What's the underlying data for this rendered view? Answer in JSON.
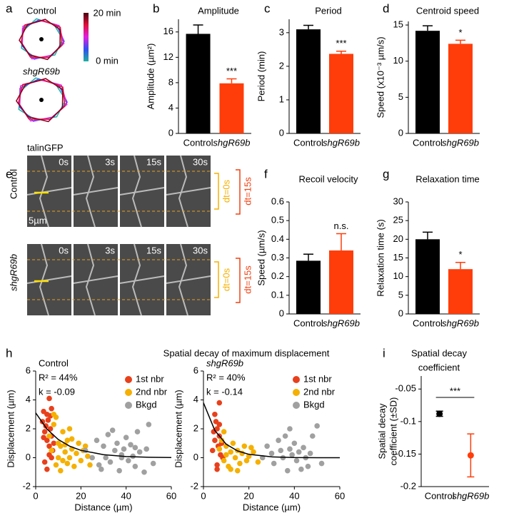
{
  "panel_labels": [
    "a",
    "b",
    "c",
    "d",
    "e",
    "f",
    "g",
    "h",
    "i"
  ],
  "panel_a": {
    "labels": [
      "Control",
      "shgR69b"
    ],
    "colorbar": [
      "20 min",
      "0 min"
    ]
  },
  "panel_e": {
    "channel": "talinGFP",
    "rows": [
      "Control",
      "shgR69b"
    ],
    "times": [
      "0s",
      "3s",
      "15s",
      "30s"
    ],
    "scale_bar": "5µm",
    "brackets": [
      "dt=0s",
      "dt=15s"
    ]
  },
  "panel_h": {
    "title": "Spatial decay of maximum displacement"
  },
  "chart_data": [
    {
      "type": "bar",
      "title": "Amplitude",
      "ylabel": "Amplitude (µm²)",
      "categories": [
        "Control",
        "shgR69b"
      ],
      "values": [
        15.7,
        7.9
      ],
      "errors": [
        1.4,
        0.7
      ],
      "colors": [
        "#000000",
        "#ff3d0a"
      ],
      "ylim": [
        0,
        18
      ],
      "yticks": [
        0,
        4,
        8,
        12,
        16
      ],
      "significance": "***"
    },
    {
      "type": "bar",
      "title": "Period",
      "ylabel": "Period (min)",
      "categories": [
        "Control",
        "shgR69b"
      ],
      "values": [
        3.1,
        2.37
      ],
      "errors": [
        0.12,
        0.08
      ],
      "colors": [
        "#000000",
        "#ff3d0a"
      ],
      "ylim": [
        0,
        3.4
      ],
      "yticks": [
        0,
        1,
        2,
        3
      ],
      "significance": "***"
    },
    {
      "type": "bar",
      "title": "Centroid speed",
      "ylabel": "Speed (x10⁻³ µm/s)",
      "categories": [
        "Control",
        "shgR69b"
      ],
      "values": [
        14.2,
        12.4
      ],
      "errors": [
        0.7,
        0.5
      ],
      "colors": [
        "#000000",
        "#ff3d0a"
      ],
      "ylim": [
        0,
        15.5
      ],
      "yticks": [
        0,
        5,
        10,
        15
      ],
      "significance": "*"
    },
    {
      "type": "bar",
      "title": "Recoil velocity",
      "ylabel": "Speed (µm/s)",
      "categories": [
        "Control",
        "shgR69b"
      ],
      "values": [
        0.285,
        0.34
      ],
      "errors": [
        0.035,
        0.09
      ],
      "colors": [
        "#000000",
        "#ff3d0a"
      ],
      "ylim": [
        0,
        0.6
      ],
      "yticks": [
        0,
        0.1,
        0.2,
        0.3,
        0.4,
        0.5,
        0.6
      ],
      "significance": "n.s."
    },
    {
      "type": "bar",
      "title": "Relaxation time",
      "ylabel": "Relaxation time (s)",
      "categories": [
        "Control",
        "shgR69b"
      ],
      "values": [
        20,
        12
      ],
      "errors": [
        1.9,
        1.8
      ],
      "colors": [
        "#000000",
        "#ff3d0a"
      ],
      "ylim": [
        0,
        30
      ],
      "yticks": [
        0,
        5,
        10,
        15,
        20,
        25,
        30
      ],
      "significance": "*"
    },
    {
      "type": "scatter",
      "xlabel": "Distance (µm)",
      "ylabel": "Displacement (µm)",
      "annotations": [
        "Control",
        "R² = 44%",
        "k = -0.09"
      ],
      "xlim": [
        0,
        60
      ],
      "xticks": [
        0,
        20,
        40,
        60
      ],
      "ylim": [
        -2,
        6
      ],
      "yticks": [
        -2,
        0,
        2,
        4,
        6
      ],
      "series": [
        {
          "name": "1st nbr",
          "color": "#e8401c",
          "x": [
            3,
            3.5,
            4,
            4.5,
            5,
            5,
            5.5,
            6,
            6,
            6.5,
            7,
            7,
            7.5,
            8,
            4,
            5,
            6,
            3.5,
            6.5,
            7
          ],
          "values": [
            2.5,
            3.2,
            1.8,
            2.2,
            3.0,
            1.2,
            2.6,
            4.1,
            0.8,
            2.0,
            1.5,
            3.4,
            0.5,
            1.0,
            -0.3,
            -0.8,
            0.2,
            1.4,
            2.9,
            0.0
          ]
        },
        {
          "name": "2nd nbr",
          "color": "#f5b000",
          "x": [
            6,
            7,
            8,
            9,
            10,
            10,
            11,
            12,
            12,
            13,
            14,
            15,
            15,
            16,
            17,
            18,
            19,
            20,
            21,
            22,
            23,
            24,
            9,
            11,
            13,
            16,
            8,
            14
          ],
          "values": [
            1.5,
            0.5,
            2.3,
            -0.5,
            1.0,
            0.0,
            0.8,
            1.8,
            -0.2,
            0.4,
            1.2,
            0.0,
            2.0,
            0.6,
            -0.6,
            0.3,
            1.0,
            -0.2,
            0.5,
            0.8,
            0.1,
            -0.5,
            2.8,
            -0.9,
            0.9,
            1.3,
            3.0,
            -0.4
          ]
        },
        {
          "name": "Bkgd",
          "color": "#a0a0a0",
          "x": [
            22,
            25,
            27,
            28,
            30,
            31,
            32,
            33,
            35,
            36,
            37,
            38,
            39,
            40,
            41,
            42,
            43,
            44,
            45,
            46,
            48,
            49,
            50,
            52,
            34,
            29,
            38,
            44
          ],
          "values": [
            0.5,
            0.0,
            1.2,
            -0.5,
            0.8,
            0.0,
            1.6,
            -0.3,
            0.5,
            1.0,
            -0.9,
            0.2,
            0.6,
            1.4,
            -0.2,
            0.9,
            0.1,
            -0.6,
            1.8,
            0.4,
            -1.0,
            0.6,
            2.3,
            -0.4,
            1.9,
            -0.8,
            0.0,
            0.7
          ]
        }
      ],
      "curve": {
        "color": "#000000",
        "x": [
          0,
          5,
          10,
          15,
          20,
          30,
          40,
          50,
          60
        ],
        "values": [
          3.1,
          1.98,
          1.26,
          0.8,
          0.51,
          0.21,
          0.08,
          0.03,
          0.01
        ]
      }
    },
    {
      "type": "scatter",
      "xlabel": "Distance (µm)",
      "ylabel": "Displacement (µm)",
      "annotations": [
        "shgR69b",
        "R² = 40%",
        "k = -0.14"
      ],
      "xlim": [
        0,
        60
      ],
      "xticks": [
        0,
        20,
        40,
        60
      ],
      "ylim": [
        -2,
        6
      ],
      "yticks": [
        -2,
        0,
        2,
        4,
        6
      ],
      "series": [
        {
          "name": "1st nbr",
          "color": "#e8401c",
          "x": [
            4,
            5,
            5,
            6,
            6,
            6.5,
            7,
            7,
            7.5,
            8,
            5.5,
            6,
            8.5,
            4.5,
            7
          ],
          "values": [
            0.5,
            3.0,
            1.2,
            2.0,
            -0.5,
            0.8,
            3.8,
            1.5,
            0.2,
            1.0,
            2.5,
            -0.8,
            0.0,
            1.8,
            2.3
          ]
        },
        {
          "name": "2nd nbr",
          "color": "#f5b000",
          "x": [
            7,
            8,
            9,
            10,
            10,
            11,
            12,
            13,
            14,
            15,
            16,
            17,
            18,
            19,
            20,
            22,
            24,
            9,
            12,
            15,
            21
          ],
          "values": [
            0.6,
            1.2,
            -0.2,
            0.8,
            0.2,
            -0.6,
            0.4,
            1.0,
            0.0,
            0.5,
            -0.4,
            0.3,
            0.8,
            -0.2,
            0.1,
            0.4,
            -0.3,
            1.8,
            -0.8,
            -0.9,
            0.7
          ]
        },
        {
          "name": "Bkgd",
          "color": "#a0a0a0",
          "x": [
            26,
            28,
            30,
            31,
            33,
            34,
            35,
            36,
            37,
            38,
            39,
            40,
            41,
            42,
            43,
            44,
            45,
            46,
            47,
            48,
            50,
            52,
            38
          ],
          "values": [
            0.0,
            0.8,
            0.3,
            -0.4,
            1.2,
            0.5,
            0.0,
            1.5,
            -0.9,
            0.6,
            0.2,
            1.0,
            -0.2,
            0.4,
            -0.8,
            0.7,
            0.0,
            -0.6,
            0.3,
            1.5,
            2.2,
            -0.4,
            2.0
          ]
        }
      ],
      "curve": {
        "color": "#000000",
        "x": [
          0,
          5,
          10,
          15,
          20,
          30,
          40,
          50,
          60
        ],
        "values": [
          3.8,
          1.89,
          0.94,
          0.47,
          0.23,
          0.06,
          0.01,
          0.0,
          0.0
        ]
      }
    },
    {
      "type": "errorbar",
      "title_lines": [
        "Spatial decay",
        "coefficient"
      ],
      "ylabel_lines": [
        "Spatial decay",
        "coefficient (±SD)"
      ],
      "categories": [
        "Control",
        "shgR69b"
      ],
      "values": [
        -0.088,
        -0.152
      ],
      "errors": [
        0.004,
        0.033
      ],
      "colors": [
        "#000000",
        "#ff3d0a"
      ],
      "ylim": [
        -0.2,
        -0.03
      ],
      "yticks": [
        -0.2,
        -0.15,
        -0.1,
        -0.05
      ],
      "significance": "***"
    }
  ]
}
